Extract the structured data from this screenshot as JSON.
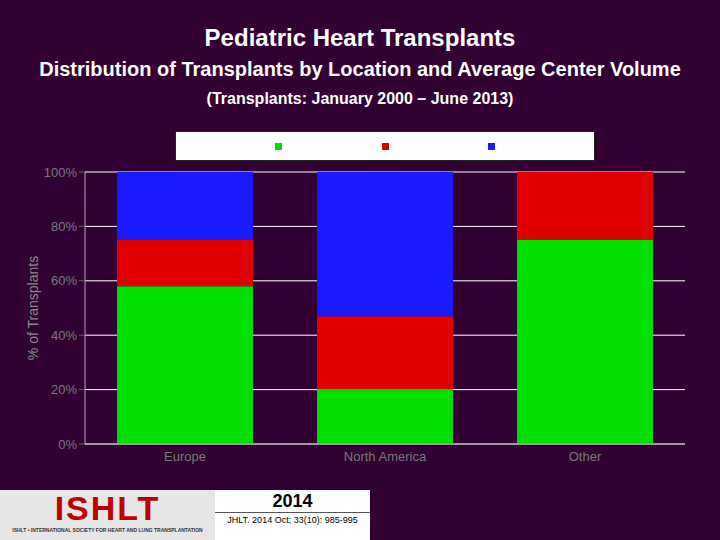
{
  "chart_data": {
    "type": "bar",
    "title": "Pediatric Heart Transplants",
    "subtitle": "Distribution of Transplants by Location and Average Center Volume (Transplants: January 2000 – June 2013)",
    "y_label": "% of Transplants",
    "categories": [
      "Europe",
      "North America",
      "Other"
    ],
    "series": [
      {
        "color": "#00e000",
        "values": [
          58,
          20,
          75
        ]
      },
      {
        "color": "#e00000",
        "values": [
          17,
          27,
          25
        ]
      },
      {
        "color": "#1a1aff",
        "values": [
          25,
          53,
          0
        ]
      }
    ],
    "stacked": true,
    "ylim": [
      0,
      100
    ],
    "yticks": [
      {
        "value": 0,
        "label": "0%"
      },
      {
        "value": 20,
        "label": "20%"
      },
      {
        "value": 40,
        "label": "40%"
      },
      {
        "value": 60,
        "label": "60%"
      },
      {
        "value": 80,
        "label": "80%"
      },
      {
        "value": 100,
        "label": "100%"
      }
    ],
    "grid": true,
    "legend": "top",
    "footer": {
      "logo": "ISHLT",
      "society": "ISHLT • INTERNATIONAL SOCIETY FOR HEART AND LUNG TRANSPLANTATION",
      "year": "2014",
      "citation": "JHLT. 2014 Oct; 33(10): 985-995"
    }
  }
}
